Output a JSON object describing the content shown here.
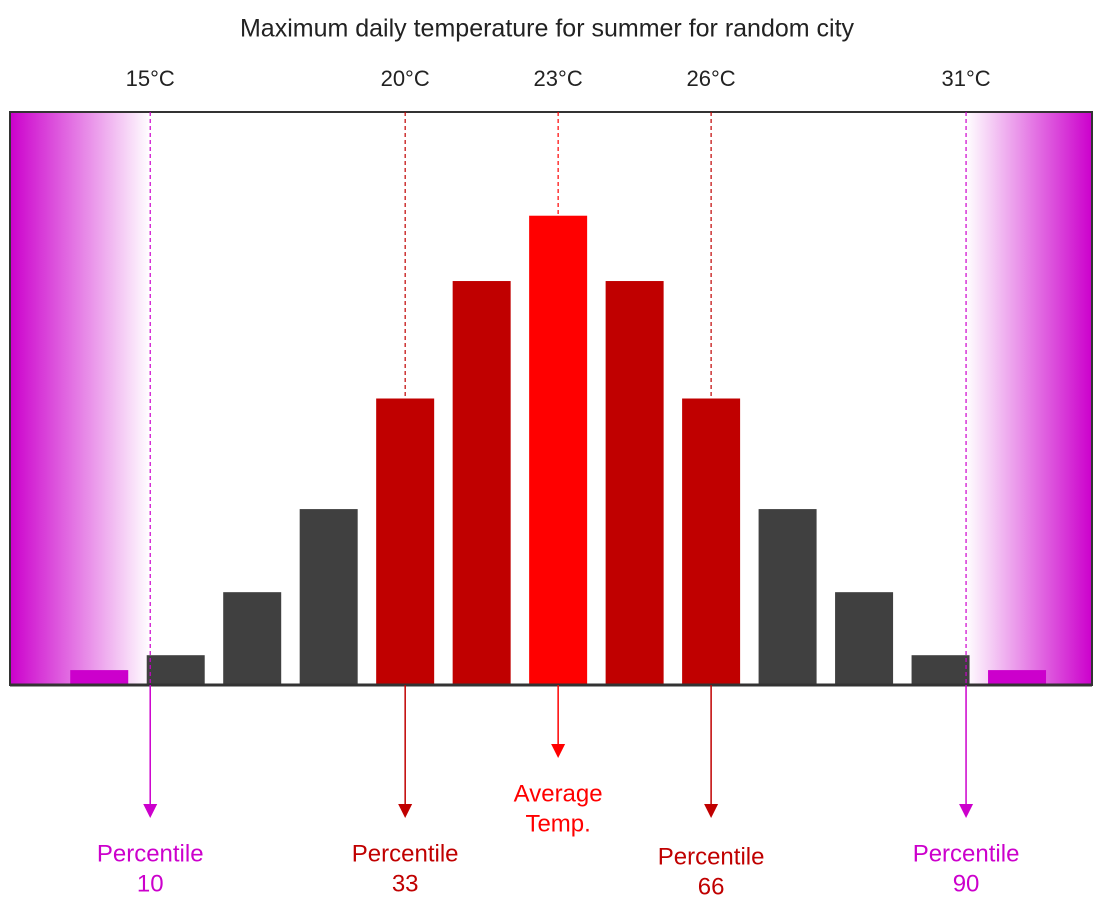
{
  "chart_data": {
    "type": "bar",
    "title": "Maximum daily temperature for summer for random city",
    "x": [
      14,
      15.5,
      17,
      18.5,
      20,
      21.5,
      23,
      24.5,
      26,
      27.5,
      29,
      30.5,
      32
    ],
    "values": [
      2.6,
      5.2,
      16.2,
      30.7,
      50,
      70.5,
      81.9,
      70.5,
      50,
      30.7,
      16.2,
      5.2,
      2.6
    ],
    "colors": [
      "#cc00cc",
      "#404040",
      "#404040",
      "#404040",
      "#c00000",
      "#c00000",
      "#ff0000",
      "#c00000",
      "#c00000",
      "#404040",
      "#404040",
      "#404040",
      "#cc00cc"
    ],
    "xlim": [
      12.25,
      33.47
    ],
    "ylim": [
      0,
      100
    ],
    "markers": [
      {
        "value": 15,
        "label": "15°C",
        "color": "#cc00cc",
        "annotation": [
          "Percentile",
          "10"
        ]
      },
      {
        "value": 20,
        "label": "20°C",
        "color": "#c00000",
        "annotation": [
          "Percentile",
          "33"
        ]
      },
      {
        "value": 23,
        "label": "23°C",
        "color": "#ff0000",
        "annotation": [
          "Average",
          "Temp."
        ]
      },
      {
        "value": 26,
        "label": "26°C",
        "color": "#c00000",
        "annotation": [
          "Percentile",
          "66"
        ]
      },
      {
        "value": 31,
        "label": "31°C",
        "color": "#cc00cc",
        "annotation": [
          "Percentile",
          "90"
        ]
      }
    ]
  }
}
